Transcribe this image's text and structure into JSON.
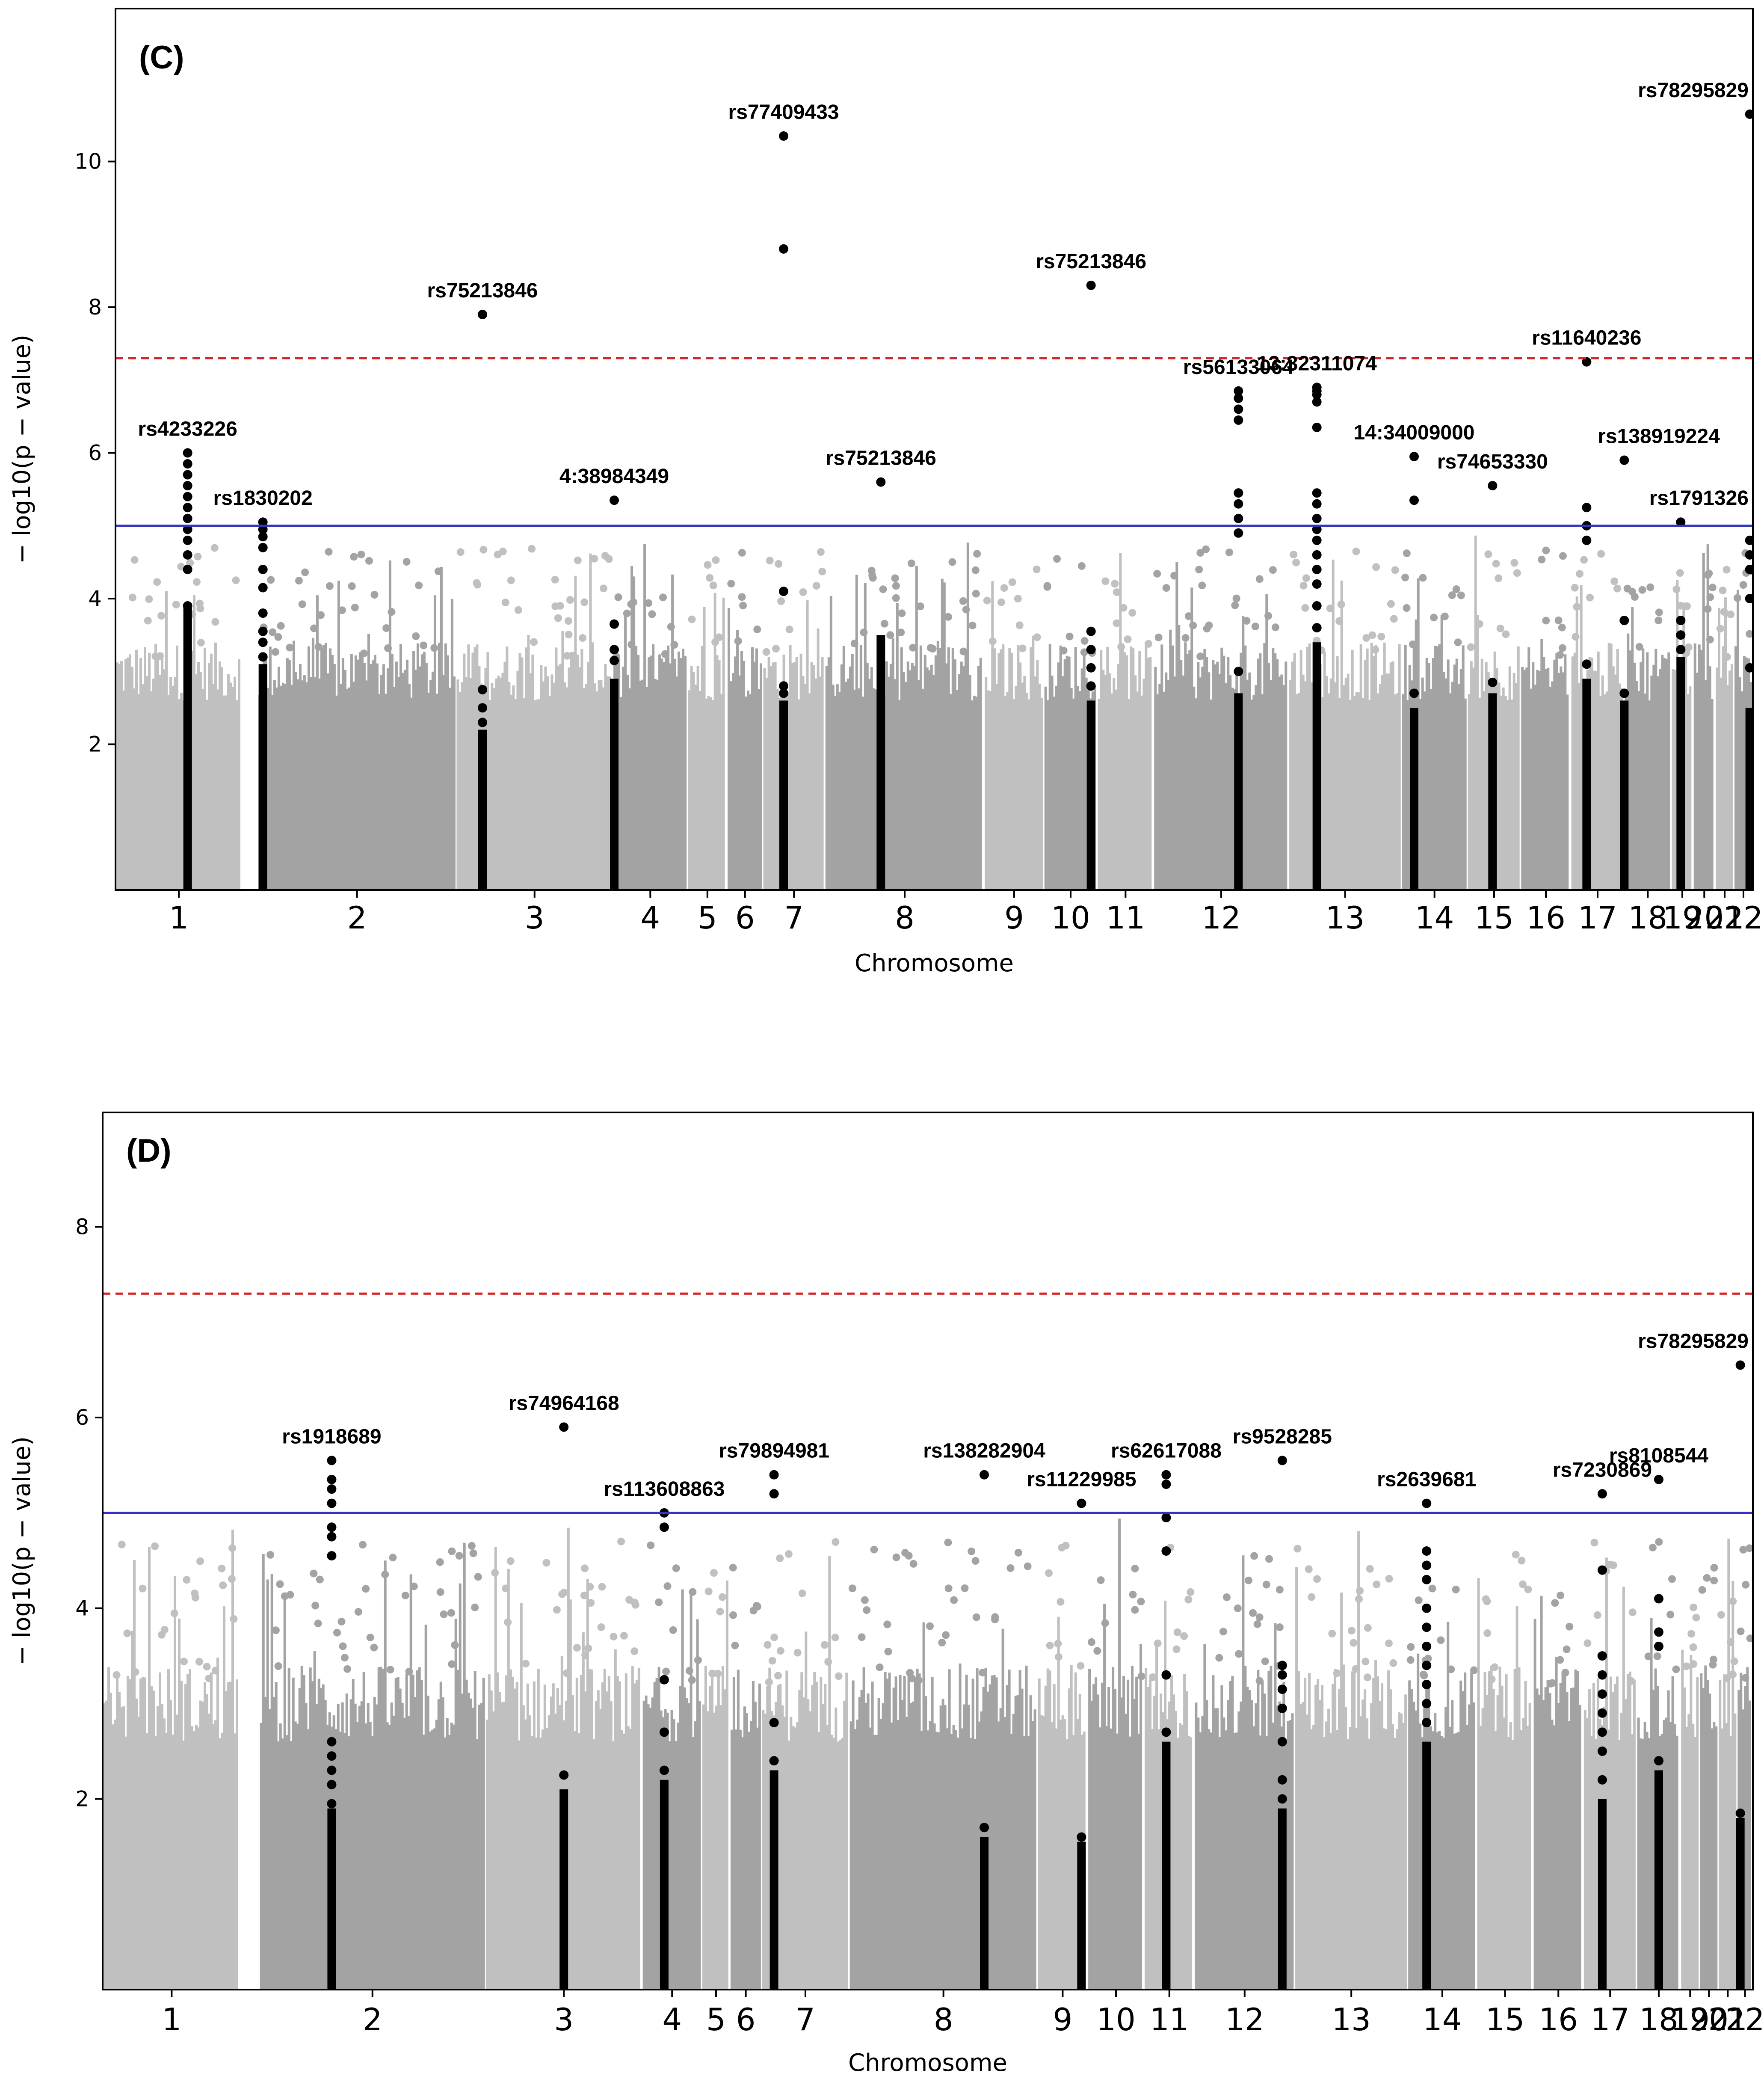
{
  "figure": {
    "background": "#ffffff"
  },
  "chart_data": [
    {
      "type": "scatter",
      "subtype": "manhattan",
      "panel": "(C)",
      "xlabel": "Chromosome",
      "ylabel": "− log10(p − value)",
      "ylim": [
        0,
        12.1
      ],
      "yticks": [
        2,
        4,
        6,
        8,
        10
      ],
      "grid": false,
      "chromosomes": [
        {
          "label": "1",
          "start": 0,
          "end": 2.02
        },
        {
          "label": "2",
          "start": 2.27,
          "end": 5.43
        },
        {
          "label": "3",
          "start": 5.43,
          "end": 7.93
        },
        {
          "label": "4",
          "start": 7.93,
          "end": 9.12
        },
        {
          "label": "5",
          "start": 9.12,
          "end": 9.75
        },
        {
          "label": "6",
          "start": 9.75,
          "end": 10.32
        },
        {
          "label": "7",
          "start": 10.32,
          "end": 11.31
        },
        {
          "label": "8",
          "start": 11.31,
          "end": 13.85
        },
        {
          "label": "9",
          "start": 13.85,
          "end": 14.8
        },
        {
          "label": "10",
          "start": 14.8,
          "end": 15.65
        },
        {
          "label": "11",
          "start": 15.65,
          "end": 16.55
        },
        {
          "label": "12",
          "start": 16.55,
          "end": 18.7
        },
        {
          "label": "13",
          "start": 18.7,
          "end": 20.5
        },
        {
          "label": "14",
          "start": 20.5,
          "end": 21.55
        },
        {
          "label": "15",
          "start": 21.55,
          "end": 22.4
        },
        {
          "label": "16",
          "start": 22.4,
          "end": 23.2
        },
        {
          "label": "17",
          "start": 23.2,
          "end": 24.05
        },
        {
          "label": "18",
          "start": 24.05,
          "end": 24.8
        },
        {
          "label": "19",
          "start": 24.8,
          "end": 25.15
        },
        {
          "label": "20",
          "start": 25.15,
          "end": 25.5
        },
        {
          "label": "21",
          "start": 25.5,
          "end": 25.8
        },
        {
          "label": "22",
          "start": 25.8,
          "end": 26.1
        }
      ],
      "series_colors": [
        "#c0c0c0",
        "#a3a3a3"
      ],
      "hit_color": "#000000",
      "genome_wide_threshold": {
        "value": 7.3,
        "color": "#d62728",
        "style": "dashed"
      },
      "suggestive_threshold": {
        "value": 5.0,
        "color": "#3333bb",
        "style": "solid"
      },
      "annotations": [
        {
          "label": "rs4233226",
          "x": 1.15,
          "y": 6.0
        },
        {
          "label": "rs1830202",
          "x": 2.35,
          "y": 5.05
        },
        {
          "label": "rs75213846",
          "x": 5.85,
          "y": 7.9
        },
        {
          "label": "4:38984349",
          "x": 7.95,
          "y": 5.35
        },
        {
          "label": "rs77409433",
          "x": 10.65,
          "y": 10.35
        },
        {
          "label": "rs75213846",
          "x": 12.2,
          "y": 5.6
        },
        {
          "label": "rs75213846",
          "x": 15.55,
          "y": 8.3
        },
        {
          "label": "rs56133064",
          "x": 17.9,
          "y": 6.85
        },
        {
          "label": "13:32311074",
          "x": 19.15,
          "y": 6.9
        },
        {
          "label": "14:34009000",
          "x": 20.7,
          "y": 5.95
        },
        {
          "label": "rs74653330",
          "x": 21.95,
          "y": 5.55
        },
        {
          "label": "rs11640236",
          "x": 23.45,
          "y": 7.25
        },
        {
          "label": "rs138919224",
          "x": 24.6,
          "y": 5.9
        },
        {
          "label": "rs1791326",
          "x": 24.95,
          "y": 5.05
        },
        {
          "label": "rs78295829",
          "x": 26.05,
          "y": 10.65
        }
      ],
      "hit_columns": [
        {
          "x": 1.15,
          "points": [
            6.0,
            5.85,
            5.7,
            5.55,
            5.4,
            5.25,
            5.1,
            4.95,
            4.8,
            4.6,
            4.4,
            3.9
          ],
          "column_top": 3.9
        },
        {
          "x": 2.35,
          "points": [
            5.05,
            4.95,
            4.85,
            4.7,
            4.4,
            4.15,
            3.8,
            3.55,
            3.4,
            3.2
          ],
          "column_top": 3.1
        },
        {
          "x": 5.85,
          "points": [
            7.9,
            2.75,
            2.5,
            2.3
          ],
          "column_top": 2.2
        },
        {
          "x": 7.95,
          "points": [
            5.35,
            3.65,
            3.3,
            3.15
          ],
          "column_top": 2.9
        },
        {
          "x": 10.65,
          "points": [
            10.35,
            8.8,
            4.1,
            2.8,
            2.7
          ],
          "column_top": 2.6
        },
        {
          "x": 12.2,
          "points": [
            5.6
          ],
          "column_top": 3.5
        },
        {
          "x": 15.55,
          "points": [
            8.3,
            3.55,
            3.3,
            3.05,
            2.8
          ],
          "column_top": 2.6
        },
        {
          "x": 17.9,
          "points": [
            6.85,
            6.75,
            6.6,
            6.45,
            5.45,
            5.3,
            5.1,
            4.9,
            3.0
          ],
          "column_top": 2.7
        },
        {
          "x": 19.15,
          "points": [
            6.9,
            6.85,
            6.8,
            6.7,
            6.35,
            5.45,
            5.3,
            5.1,
            4.95,
            4.8,
            4.6,
            4.4,
            4.2,
            3.9,
            3.6
          ],
          "column_top": 3.4
        },
        {
          "x": 20.7,
          "points": [
            5.95,
            5.35,
            2.7
          ],
          "column_top": 2.5
        },
        {
          "x": 21.95,
          "points": [
            5.55,
            2.85
          ],
          "column_top": 2.7
        },
        {
          "x": 23.45,
          "points": [
            7.25,
            5.25,
            5.0,
            4.8,
            3.1
          ],
          "column_top": 2.9
        },
        {
          "x": 24.05,
          "points": [
            5.9,
            3.7,
            2.7
          ],
          "column_top": 2.6
        },
        {
          "x": 24.95,
          "points": [
            5.05,
            3.7,
            3.5,
            3.3
          ],
          "column_top": 3.2
        },
        {
          "x": 26.05,
          "points": [
            10.65,
            4.8,
            4.6,
            4.4,
            4.0,
            3.05
          ],
          "column_top": 2.5
        }
      ]
    },
    {
      "type": "scatter",
      "subtype": "manhattan",
      "panel": "(D)",
      "xlabel": "Chromosome",
      "ylabel": "− log10(p − value)",
      "ylim": [
        0,
        9.2
      ],
      "yticks": [
        2,
        4,
        6,
        8
      ],
      "grid": false,
      "chromosomes": [
        {
          "label": "1",
          "start": 0,
          "end": 2.2
        },
        {
          "label": "2",
          "start": 2.5,
          "end": 6.1
        },
        {
          "label": "3",
          "start": 6.1,
          "end": 8.6
        },
        {
          "label": "4",
          "start": 8.6,
          "end": 9.55
        },
        {
          "label": "5",
          "start": 9.55,
          "end": 10.0
        },
        {
          "label": "6",
          "start": 10.0,
          "end": 10.5
        },
        {
          "label": "7",
          "start": 10.5,
          "end": 11.9
        },
        {
          "label": "8",
          "start": 11.9,
          "end": 14.9
        },
        {
          "label": "9",
          "start": 14.9,
          "end": 15.7
        },
        {
          "label": "10",
          "start": 15.7,
          "end": 16.6
        },
        {
          "label": "11",
          "start": 16.6,
          "end": 17.4
        },
        {
          "label": "12",
          "start": 17.4,
          "end": 19.0
        },
        {
          "label": "13",
          "start": 19.0,
          "end": 20.8
        },
        {
          "label": "14",
          "start": 20.8,
          "end": 21.9
        },
        {
          "label": "15",
          "start": 21.9,
          "end": 22.8
        },
        {
          "label": "16",
          "start": 22.8,
          "end": 23.6
        },
        {
          "label": "17",
          "start": 23.6,
          "end": 24.45
        },
        {
          "label": "18",
          "start": 24.45,
          "end": 25.15
        },
        {
          "label": "19",
          "start": 25.15,
          "end": 25.45
        },
        {
          "label": "20",
          "start": 25.45,
          "end": 25.75
        },
        {
          "label": "21",
          "start": 25.75,
          "end": 26.05
        },
        {
          "label": "22",
          "start": 26.05,
          "end": 26.3
        }
      ],
      "series_colors": [
        "#c0c0c0",
        "#a3a3a3"
      ],
      "hit_color": "#000000",
      "genome_wide_threshold": {
        "value": 7.3,
        "color": "#d62728",
        "style": "dashed"
      },
      "suggestive_threshold": {
        "value": 5.0,
        "color": "#3333bb",
        "style": "solid"
      },
      "annotations": [
        {
          "label": "rs1918689",
          "x": 3.65,
          "y": 5.55
        },
        {
          "label": "rs74964168",
          "x": 7.35,
          "y": 5.9
        },
        {
          "label": "rs113608863",
          "x": 8.95,
          "y": 5.0
        },
        {
          "label": "rs79894981",
          "x": 10.7,
          "y": 5.4
        },
        {
          "label": "rs138282904",
          "x": 14.05,
          "y": 5.4
        },
        {
          "label": "rs11229985",
          "x": 15.6,
          "y": 5.1
        },
        {
          "label": "rs62617088",
          "x": 16.95,
          "y": 5.4
        },
        {
          "label": "rs9528285",
          "x": 18.8,
          "y": 5.55
        },
        {
          "label": "rs2639681",
          "x": 21.1,
          "y": 5.1
        },
        {
          "label": "rs7230869",
          "x": 23.9,
          "y": 5.2
        },
        {
          "label": "rs8108544",
          "x": 24.8,
          "y": 5.35
        },
        {
          "label": "rs78295829",
          "x": 26.1,
          "y": 6.55
        }
      ],
      "hit_columns": [
        {
          "x": 3.65,
          "points": [
            5.55,
            5.35,
            5.25,
            5.1,
            4.85,
            4.75,
            4.55,
            2.6,
            2.45,
            2.3,
            2.15,
            1.95
          ],
          "column_top": 1.9
        },
        {
          "x": 7.35,
          "points": [
            5.9,
            2.25
          ],
          "column_top": 2.1
        },
        {
          "x": 8.95,
          "points": [
            5.0,
            4.85,
            3.25,
            2.7,
            2.3
          ],
          "column_top": 2.2
        },
        {
          "x": 10.7,
          "points": [
            5.4,
            5.2,
            2.8,
            2.4
          ],
          "column_top": 2.3
        },
        {
          "x": 14.05,
          "points": [
            5.4,
            1.7
          ],
          "column_top": 1.6
        },
        {
          "x": 15.6,
          "points": [
            5.1,
            1.6
          ],
          "column_top": 1.55
        },
        {
          "x": 16.95,
          "points": [
            5.4,
            5.3,
            4.95,
            4.6,
            3.3,
            2.7
          ],
          "column_top": 2.6
        },
        {
          "x": 18.8,
          "points": [
            5.55,
            3.4,
            3.3,
            3.15,
            2.95,
            2.6,
            2.2,
            2.0
          ],
          "column_top": 1.9
        },
        {
          "x": 21.1,
          "points": [
            5.1,
            4.6,
            4.45,
            4.3,
            4.0,
            3.8,
            3.6,
            3.4,
            3.2,
            3.0,
            2.8
          ],
          "column_top": 2.6
        },
        {
          "x": 23.9,
          "points": [
            5.2,
            4.4,
            3.5,
            3.3,
            3.1,
            2.9,
            2.7,
            2.5,
            2.2
          ],
          "column_top": 2.0
        },
        {
          "x": 24.8,
          "points": [
            5.35,
            4.1,
            3.75,
            3.6,
            2.4
          ],
          "column_top": 2.3
        },
        {
          "x": 26.1,
          "points": [
            6.55,
            1.85
          ],
          "column_top": 1.8
        }
      ]
    }
  ]
}
